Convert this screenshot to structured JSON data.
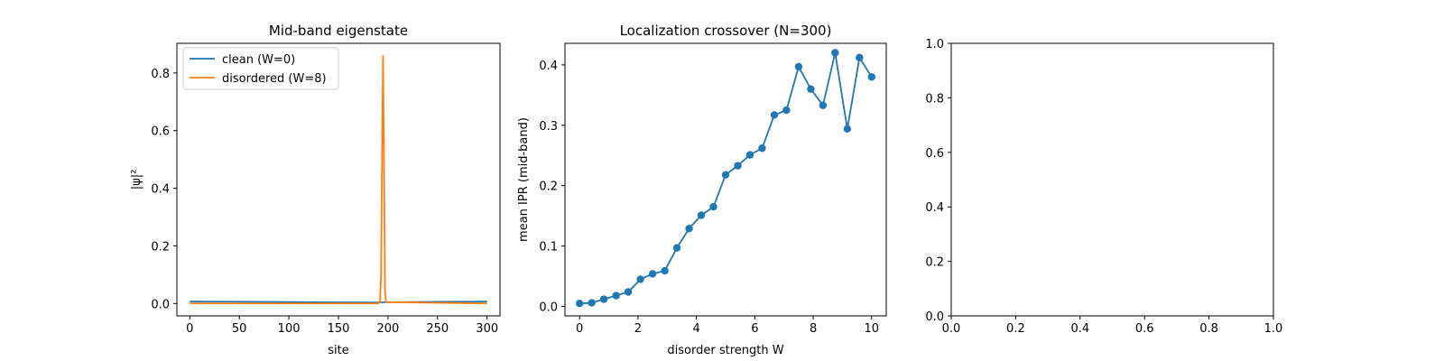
{
  "colors": {
    "c0": "#1f77b4",
    "c1": "#ff7f0e",
    "axis": "#000000",
    "background": "#ffffff"
  },
  "chart_data": [
    {
      "type": "line",
      "title": "Mid-band eigenstate",
      "xlabel": "site",
      "ylabel": "|ψ|²",
      "xlim": [
        -13,
        313
      ],
      "ylim": [
        -0.043,
        0.903
      ],
      "xticks": [
        0,
        50,
        100,
        150,
        200,
        250,
        300
      ],
      "xtick_labels": [
        "0",
        "50",
        "100",
        "150",
        "200",
        "250",
        "300"
      ],
      "yticks": [
        0.0,
        0.2,
        0.4,
        0.6,
        0.8
      ],
      "ytick_labels": [
        "0.0",
        "0.2",
        "0.4",
        "0.6",
        "0.8"
      ],
      "legend_position": "top-left",
      "grid": false,
      "series": [
        {
          "name": "clean (W=0)",
          "color": "#1f77b4",
          "x": [
            0,
            50,
            100,
            150,
            190,
            200,
            250,
            300
          ],
          "y": [
            0.0066,
            0.0062,
            0.0052,
            0.004,
            0.0037,
            0.0044,
            0.0058,
            0.0066
          ]
        },
        {
          "name": "disordered (W=8)",
          "color": "#ff7f0e",
          "x": [
            0,
            100,
            190,
            192,
            193,
            194,
            195,
            196,
            197,
            198,
            300
          ],
          "y": [
            0.0,
            0.0,
            0.0,
            0.005,
            0.1,
            0.5,
            0.86,
            0.5,
            0.04,
            0.005,
            0.0
          ]
        }
      ]
    },
    {
      "type": "line",
      "title": "Localization crossover (N=300)",
      "xlabel": "disorder strength W",
      "ylabel": "mean IPR (mid-band)",
      "xlim": [
        -0.5,
        10.5
      ],
      "ylim": [
        -0.0156,
        0.4357
      ],
      "xticks": [
        0,
        2,
        4,
        6,
        8,
        10
      ],
      "xtick_labels": [
        "0",
        "2",
        "4",
        "6",
        "8",
        "10"
      ],
      "yticks": [
        0.0,
        0.1,
        0.2,
        0.3,
        0.4
      ],
      "ytick_labels": [
        "0.0",
        "0.1",
        "0.2",
        "0.3",
        "0.4"
      ],
      "grid": false,
      "markers": true,
      "series": [
        {
          "color": "#1f77b4",
          "x": [
            0.0,
            0.417,
            0.833,
            1.25,
            1.667,
            2.083,
            2.5,
            2.917,
            3.333,
            3.75,
            4.167,
            4.583,
            5.0,
            5.417,
            5.833,
            6.25,
            6.667,
            7.083,
            7.5,
            7.917,
            8.333,
            8.75,
            9.167,
            9.583,
            10.0
          ],
          "y": [
            0.005,
            0.006,
            0.012,
            0.018,
            0.024,
            0.045,
            0.054,
            0.059,
            0.097,
            0.129,
            0.151,
            0.165,
            0.218,
            0.233,
            0.251,
            0.262,
            0.317,
            0.325,
            0.397,
            0.36,
            0.333,
            0.42,
            0.294,
            0.412,
            0.38
          ]
        }
      ]
    },
    {
      "type": "line",
      "title": "",
      "xlim": [
        0,
        1
      ],
      "ylim": [
        0,
        1
      ],
      "xticks": [
        0.0,
        0.2,
        0.4,
        0.6,
        0.8,
        1.0
      ],
      "xtick_labels": [
        "0.0",
        "0.2",
        "0.4",
        "0.6",
        "0.8",
        "1.0"
      ],
      "yticks": [
        0.0,
        0.2,
        0.4,
        0.6,
        0.8,
        1.0
      ],
      "ytick_labels": [
        "0.0",
        "0.2",
        "0.4",
        "0.6",
        "0.8",
        "1.0"
      ],
      "grid": false,
      "series": []
    }
  ]
}
